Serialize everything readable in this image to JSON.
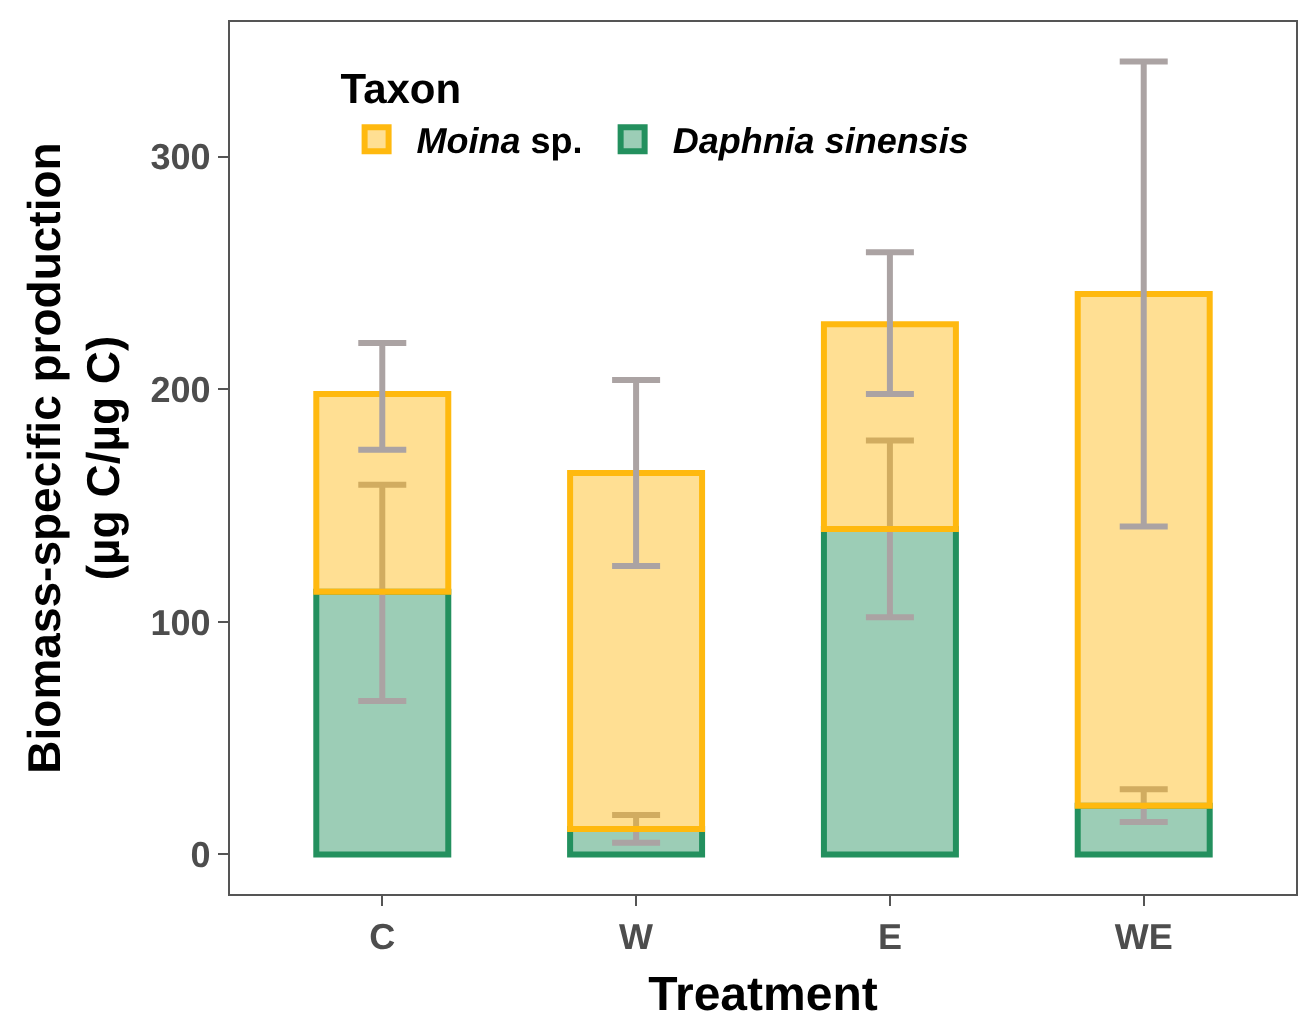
{
  "chart_data": {
    "type": "bar",
    "stacked": true,
    "xlabel": "Treatment",
    "ylabel": "Biomass-specific production\n(µg C/µg C)",
    "legend_title": "Taxon",
    "legend": "top left",
    "categories": [
      "C",
      "W",
      "E",
      "WE"
    ],
    "series": [
      {
        "name": "Daphnia sinensis",
        "color": "#23905e",
        "values": [
          113,
          11,
          140,
          21
        ],
        "errors": [
          [
            66,
            159
          ],
          [
            5,
            17
          ],
          [
            102,
            178
          ],
          [
            14,
            28
          ]
        ]
      },
      {
        "name": "Moina sp.",
        "color": "#ffb90f",
        "values": [
          85,
          153,
          88,
          220
        ],
        "errors": [
          [
            174,
            220
          ],
          [
            124,
            204
          ],
          [
            198,
            259
          ],
          [
            141,
            341
          ]
        ]
      }
    ],
    "ylim": [
      -17,
      358
    ],
    "yticks": [
      0,
      100,
      200,
      300
    ]
  }
}
